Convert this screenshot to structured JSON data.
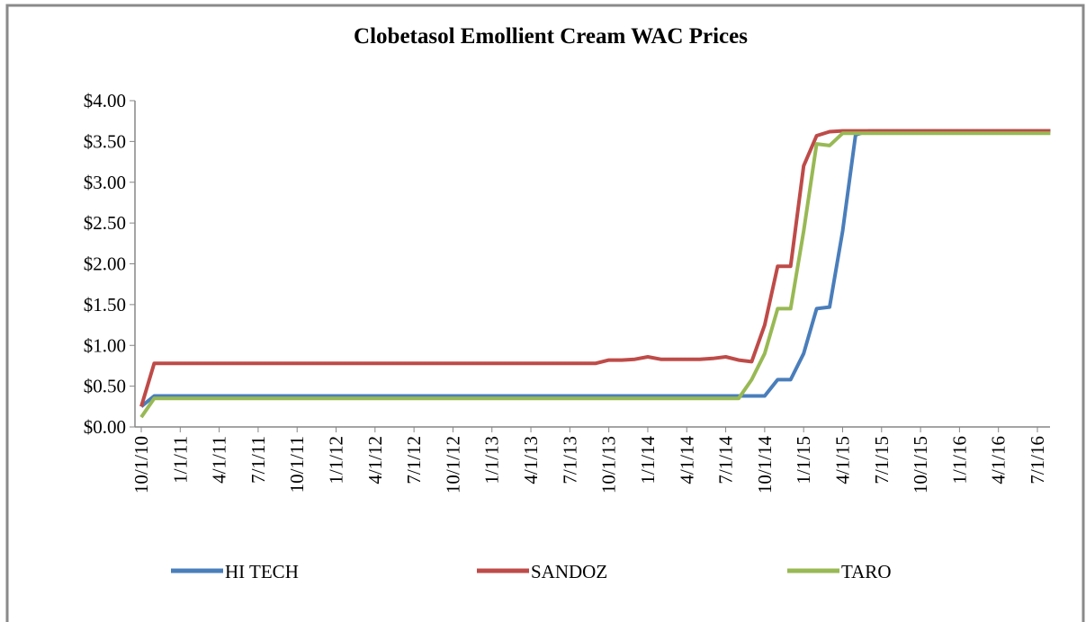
{
  "chart_data": {
    "type": "line",
    "title": "Clobetasol Emollient Cream WAC Prices",
    "categories": [
      "10/1/10",
      null,
      null,
      "1/1/11",
      null,
      null,
      "4/1/11",
      null,
      null,
      "7/1/11",
      null,
      null,
      "10/1/11",
      null,
      null,
      "1/1/12",
      null,
      null,
      "4/1/12",
      null,
      null,
      "7/1/12",
      null,
      null,
      "10/1/12",
      null,
      null,
      "1/1/13",
      null,
      null,
      "4/1/13",
      null,
      null,
      "7/1/13",
      null,
      null,
      "10/1/13",
      null,
      null,
      "1/1/14",
      null,
      null,
      "4/1/14",
      null,
      null,
      "7/1/14",
      null,
      null,
      "10/1/14",
      null,
      null,
      "1/1/15",
      null,
      null,
      "4/1/15",
      null,
      null,
      "7/1/15",
      null,
      null,
      "10/1/15",
      null,
      null,
      "1/1/16",
      null,
      null,
      "4/1/16",
      null,
      null,
      "7/1/16",
      null
    ],
    "series": [
      {
        "name": "HI TECH",
        "color": "#4a7ebb",
        "values": [
          0.25,
          0.38,
          0.38,
          0.38,
          0.38,
          0.38,
          0.38,
          0.38,
          0.38,
          0.38,
          0.38,
          0.38,
          0.38,
          0.38,
          0.38,
          0.38,
          0.38,
          0.38,
          0.38,
          0.38,
          0.38,
          0.38,
          0.38,
          0.38,
          0.38,
          0.38,
          0.38,
          0.38,
          0.38,
          0.38,
          0.38,
          0.38,
          0.38,
          0.38,
          0.38,
          0.38,
          0.38,
          0.38,
          0.38,
          0.38,
          0.38,
          0.38,
          0.38,
          0.38,
          0.38,
          0.38,
          0.38,
          0.38,
          0.38,
          0.58,
          0.58,
          0.9,
          1.45,
          1.47,
          2.4,
          3.58,
          3.63,
          3.63,
          3.63,
          3.63,
          3.63,
          3.63,
          3.63,
          3.63,
          3.63,
          3.63,
          3.63,
          3.63,
          3.63,
          3.63,
          3.63
        ]
      },
      {
        "name": "SANDOZ",
        "color": "#be4b48",
        "values": [
          0.25,
          0.78,
          0.78,
          0.78,
          0.78,
          0.78,
          0.78,
          0.78,
          0.78,
          0.78,
          0.78,
          0.78,
          0.78,
          0.78,
          0.78,
          0.78,
          0.78,
          0.78,
          0.78,
          0.78,
          0.78,
          0.78,
          0.78,
          0.78,
          0.78,
          0.78,
          0.78,
          0.78,
          0.78,
          0.78,
          0.78,
          0.78,
          0.78,
          0.78,
          0.78,
          0.78,
          0.82,
          0.82,
          0.83,
          0.86,
          0.83,
          0.83,
          0.83,
          0.83,
          0.84,
          0.86,
          0.82,
          0.8,
          1.25,
          1.97,
          1.97,
          3.2,
          3.57,
          3.62,
          3.63,
          3.63,
          3.63,
          3.63,
          3.63,
          3.63,
          3.63,
          3.63,
          3.63,
          3.63,
          3.63,
          3.63,
          3.63,
          3.63,
          3.63,
          3.63,
          3.63
        ]
      },
      {
        "name": "TARO",
        "color": "#98b954",
        "values": [
          0.12,
          0.35,
          0.35,
          0.35,
          0.35,
          0.35,
          0.35,
          0.35,
          0.35,
          0.35,
          0.35,
          0.35,
          0.35,
          0.35,
          0.35,
          0.35,
          0.35,
          0.35,
          0.35,
          0.35,
          0.35,
          0.35,
          0.35,
          0.35,
          0.35,
          0.35,
          0.35,
          0.35,
          0.35,
          0.35,
          0.35,
          0.35,
          0.35,
          0.35,
          0.35,
          0.35,
          0.35,
          0.35,
          0.35,
          0.35,
          0.35,
          0.35,
          0.35,
          0.35,
          0.35,
          0.35,
          0.35,
          0.58,
          0.9,
          1.45,
          1.45,
          2.4,
          3.47,
          3.45,
          3.6,
          3.6,
          3.6,
          3.6,
          3.6,
          3.6,
          3.6,
          3.6,
          3.6,
          3.6,
          3.6,
          3.6,
          3.6,
          3.6,
          3.6,
          3.6,
          3.6
        ]
      }
    ],
    "ylim": [
      0,
      4
    ],
    "yticks": [
      {
        "value": 0,
        "label": "$0.00"
      },
      {
        "value": 0.5,
        "label": "$0.50"
      },
      {
        "value": 1,
        "label": "$1.00"
      },
      {
        "value": 1.5,
        "label": "$1.50"
      },
      {
        "value": 2,
        "label": "$2.00"
      },
      {
        "value": 2.5,
        "label": "$2.50"
      },
      {
        "value": 3,
        "label": "$3.00"
      },
      {
        "value": 3.5,
        "label": "$3.50"
      },
      {
        "value": 4,
        "label": "$4.00"
      }
    ],
    "grid": false
  }
}
